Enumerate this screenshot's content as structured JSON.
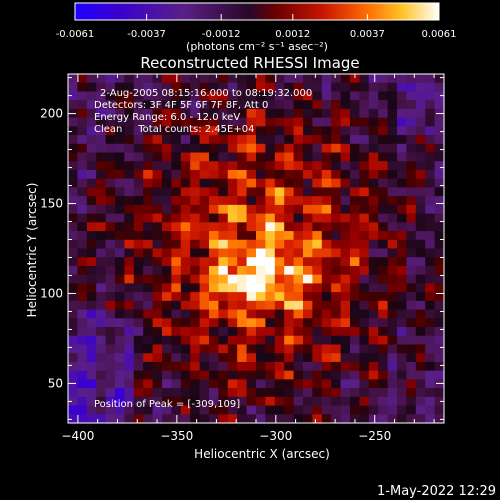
{
  "chart_data": {
    "type": "heatmap",
    "title": "Reconstructed RHESSI Image",
    "xlabel": "Heliocentric X (arcsec)",
    "ylabel": "Heliocentric Y (arcsec)",
    "xlim": [
      -405,
      -215
    ],
    "ylim": [
      28,
      222
    ],
    "x_ticks": [
      -400,
      -350,
      -300,
      -250
    ],
    "y_ticks": [
      50,
      100,
      150,
      200
    ],
    "colorbar": {
      "ticks": [
        "-0.0061",
        "-0.0037",
        "-0.0012",
        "0.0012",
        "0.0037",
        "0.0061"
      ],
      "range": [
        -0.0061,
        0.0061
      ],
      "unit_label": "(photons cm⁻² s⁻¹ asec⁻²)"
    },
    "annotations": [
      "2-Aug-2005 08:15:16.000 to 08:19:32.000",
      "Detectors: 3F 4F 5F 6F 7F 8F, Att 0",
      "Energy Range: 6.0 - 12.0 keV",
      "Clean     Total counts: 2.45E+04"
    ],
    "peak": {
      "label": "Position of Peak = [-309,109]",
      "x": -309,
      "y": 109
    },
    "grid": false
  },
  "footer": {
    "timestamp": "1-May-2022 12:29"
  }
}
